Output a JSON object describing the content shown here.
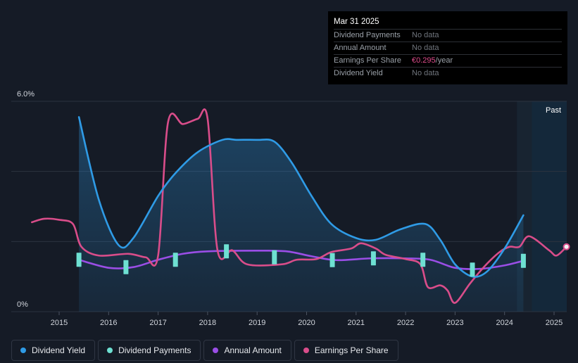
{
  "tooltip": {
    "date": "Mar 31 2025",
    "rows": [
      {
        "label": "Dividend Payments",
        "value": "No data",
        "suffix": ""
      },
      {
        "label": "Annual Amount",
        "value": "No data",
        "suffix": ""
      },
      {
        "label": "Earnings Per Share",
        "value": "€0.295",
        "suffix": "/year"
      },
      {
        "label": "Dividend Yield",
        "value": "No data",
        "suffix": ""
      }
    ]
  },
  "legend": [
    {
      "label": "Dividend Yield",
      "color": "#2f9be6"
    },
    {
      "label": "Dividend Payments",
      "color": "#6ee0d2"
    },
    {
      "label": "Annual Amount",
      "color": "#9a4ee6"
    },
    {
      "label": "Earnings Per Share",
      "color": "#d94d8a"
    }
  ],
  "chart_data": {
    "type": "line",
    "x_ticks": [
      "2015",
      "2016",
      "2017",
      "2018",
      "2019",
      "2020",
      "2021",
      "2022",
      "2023",
      "2024",
      "2025"
    ],
    "xlim": [
      2014.5,
      2025.3
    ],
    "ylim": [
      0,
      6.0
    ],
    "y_ticks": [
      {
        "value": 6.0,
        "label": "6.0%"
      },
      {
        "value": 0,
        "label": "0%"
      }
    ],
    "gridlines": [
      6.0,
      4.0,
      2.0,
      0
    ],
    "past_region": {
      "label": "Past",
      "from": 2024.25,
      "to": 2025.3,
      "highlight_from": 2024.55
    },
    "series": [
      {
        "name": "Dividend Yield",
        "color": "#2f9be6",
        "fill": true,
        "points": [
          [
            2015.4,
            5.55
          ],
          [
            2015.8,
            3.2
          ],
          [
            2016.2,
            1.9
          ],
          [
            2016.5,
            2.1
          ],
          [
            2017.0,
            3.3
          ],
          [
            2017.35,
            3.95
          ],
          [
            2017.8,
            4.55
          ],
          [
            2018.3,
            4.9
          ],
          [
            2018.6,
            4.9
          ],
          [
            2019.0,
            4.9
          ],
          [
            2019.35,
            4.85
          ],
          [
            2019.7,
            4.25
          ],
          [
            2020.1,
            3.3
          ],
          [
            2020.5,
            2.5
          ],
          [
            2021.0,
            2.1
          ],
          [
            2021.4,
            2.05
          ],
          [
            2021.9,
            2.35
          ],
          [
            2022.4,
            2.5
          ],
          [
            2022.7,
            2.05
          ],
          [
            2023.0,
            1.35
          ],
          [
            2023.35,
            1.0
          ],
          [
            2023.65,
            1.15
          ],
          [
            2024.0,
            1.8
          ],
          [
            2024.38,
            2.75
          ]
        ]
      },
      {
        "name": "Annual Amount",
        "color": "#9a4ee6",
        "fill": false,
        "points": [
          [
            2015.4,
            1.48
          ],
          [
            2016.0,
            1.25
          ],
          [
            2016.5,
            1.27
          ],
          [
            2017.0,
            1.48
          ],
          [
            2017.5,
            1.65
          ],
          [
            2018.0,
            1.72
          ],
          [
            2019.0,
            1.74
          ],
          [
            2019.6,
            1.72
          ],
          [
            2020.1,
            1.58
          ],
          [
            2020.6,
            1.47
          ],
          [
            2021.3,
            1.52
          ],
          [
            2022.0,
            1.52
          ],
          [
            2022.5,
            1.48
          ],
          [
            2023.0,
            1.25
          ],
          [
            2023.5,
            1.22
          ],
          [
            2024.0,
            1.32
          ],
          [
            2024.38,
            1.45
          ]
        ]
      },
      {
        "name": "Earnings Per Share",
        "color": "#d94d8a",
        "fill": false,
        "points": [
          [
            2014.45,
            2.55
          ],
          [
            2014.7,
            2.65
          ],
          [
            2015.0,
            2.62
          ],
          [
            2015.28,
            2.5
          ],
          [
            2015.45,
            1.85
          ],
          [
            2015.8,
            1.6
          ],
          [
            2016.4,
            1.65
          ],
          [
            2016.75,
            1.55
          ],
          [
            2017.0,
            1.6
          ],
          [
            2017.2,
            5.4
          ],
          [
            2017.5,
            5.35
          ],
          [
            2017.8,
            5.5
          ],
          [
            2018.0,
            5.5
          ],
          [
            2018.2,
            1.75
          ],
          [
            2018.5,
            1.75
          ],
          [
            2018.8,
            1.35
          ],
          [
            2019.5,
            1.35
          ],
          [
            2019.8,
            1.48
          ],
          [
            2020.2,
            1.5
          ],
          [
            2020.5,
            1.7
          ],
          [
            2020.9,
            1.8
          ],
          [
            2021.1,
            1.95
          ],
          [
            2021.4,
            1.8
          ],
          [
            2021.6,
            1.62
          ],
          [
            2022.0,
            1.5
          ],
          [
            2022.3,
            1.35
          ],
          [
            2022.45,
            0.7
          ],
          [
            2022.7,
            0.75
          ],
          [
            2022.85,
            0.6
          ],
          [
            2023.0,
            0.25
          ],
          [
            2023.3,
            0.8
          ],
          [
            2023.6,
            1.3
          ],
          [
            2023.9,
            1.7
          ],
          [
            2024.1,
            1.85
          ],
          [
            2024.3,
            1.85
          ],
          [
            2024.5,
            2.15
          ],
          [
            2024.9,
            1.75
          ],
          [
            2025.05,
            1.6
          ],
          [
            2025.25,
            1.85
          ]
        ]
      }
    ],
    "bars": {
      "name": "Dividend Payments",
      "color": "#6ee0d2",
      "points": [
        [
          2015.4,
          1.48
        ],
        [
          2016.35,
          1.27
        ],
        [
          2017.35,
          1.48
        ],
        [
          2018.38,
          1.72
        ],
        [
          2019.35,
          1.55
        ],
        [
          2020.52,
          1.47
        ],
        [
          2021.35,
          1.52
        ],
        [
          2022.35,
          1.48
        ],
        [
          2023.35,
          1.2
        ],
        [
          2024.38,
          1.45
        ]
      ]
    }
  }
}
